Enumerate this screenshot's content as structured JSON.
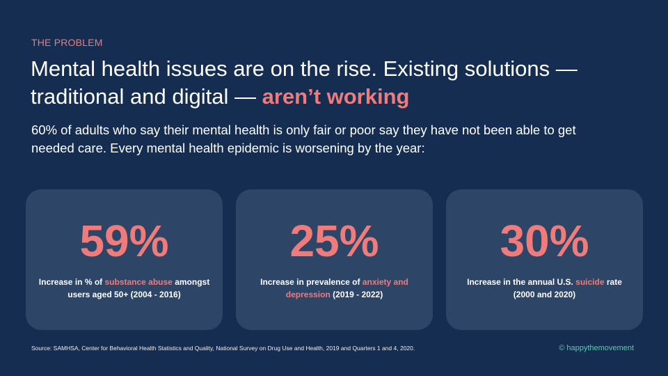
{
  "eyebrow": "THE PROBLEM",
  "headline": {
    "main": "Mental health issues are on the rise. Existing solutions — traditional and digital — ",
    "accent": "aren’t working"
  },
  "body": "60% of adults who say their mental health is only fair or poor say they have not been able to get needed care. Every mental health epidemic is worsening by the year:",
  "cards": [
    {
      "stat": "59%",
      "pre": "Increase in % of ",
      "highlight": "substance abuse",
      "post": " amongst users aged 50+ (2004 - 2016)"
    },
    {
      "stat": "25%",
      "pre": "Increase in prevalence of ",
      "highlight": "anxiety and depression",
      "post": " (2019 - 2022)"
    },
    {
      "stat": "30%",
      "pre": "Increase in the annual U.S. ",
      "highlight": "suicide",
      "post": " rate (2000 and 2020)"
    }
  ],
  "footer": {
    "source": "Source: SAMHSA, Center for Behavioral Health Statistics and Quality, National Survey on Drug Use and Health, 2019 and Quarters 1 and 4, 2020.",
    "brand": "© happythemovement"
  },
  "colors": {
    "background": "#162d52",
    "card": "#2d4567",
    "accent": "#f07b7b",
    "brand": "#5fc9b0"
  }
}
